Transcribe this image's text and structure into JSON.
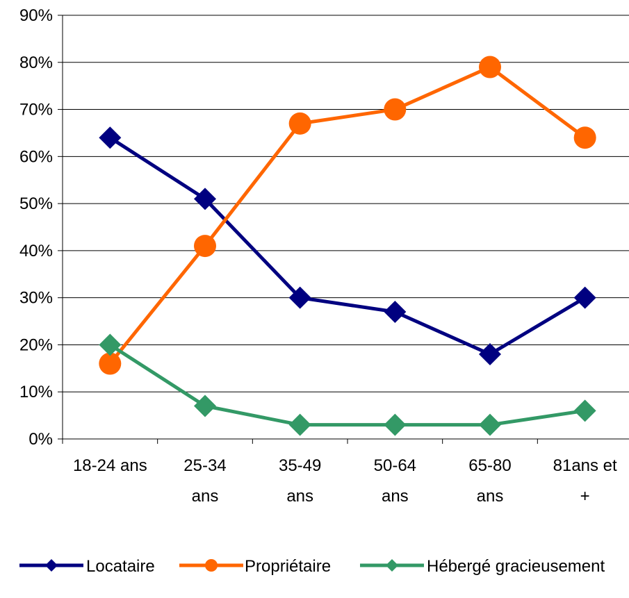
{
  "chart_data": {
    "type": "line",
    "title": "",
    "xlabel": "",
    "ylabel": "",
    "categories": [
      [
        "18-24 ans"
      ],
      [
        "25-34",
        "ans"
      ],
      [
        "35-49",
        "ans"
      ],
      [
        "50-64",
        "ans"
      ],
      [
        "65-80",
        "ans"
      ],
      [
        "81ans et",
        "+"
      ]
    ],
    "y_ticks": [
      "0%",
      "10%",
      "20%",
      "30%",
      "40%",
      "50%",
      "60%",
      "70%",
      "80%",
      "90%"
    ],
    "ylim": [
      0,
      90
    ],
    "grid": true,
    "legend_position": "bottom",
    "series": [
      {
        "name": "Locataire",
        "color": "#000080",
        "marker": "diamond",
        "values": [
          64,
          51,
          30,
          27,
          18,
          30
        ]
      },
      {
        "name": "Propriétaire",
        "color": "#FF6600",
        "marker": "circle",
        "values": [
          16,
          41,
          67,
          70,
          79,
          64
        ]
      },
      {
        "name": "Hébergé gracieusement",
        "color": "#339966",
        "marker": "diamond",
        "values": [
          20,
          7,
          3,
          3,
          3,
          6
        ]
      }
    ]
  }
}
